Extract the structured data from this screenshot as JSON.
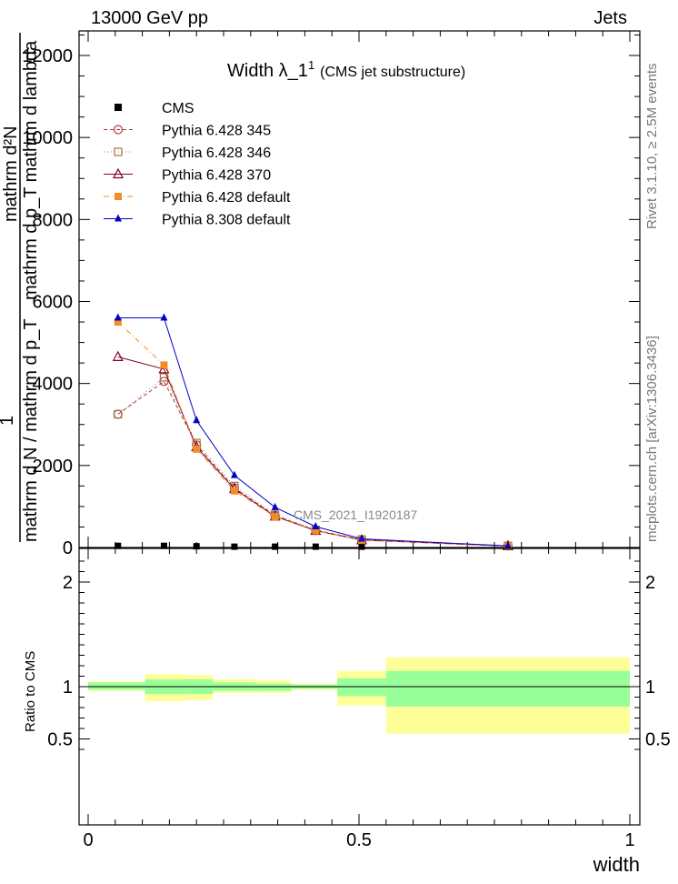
{
  "header": {
    "left": "13000 GeV pp",
    "right": "Jets"
  },
  "side": {
    "top": "Rivet 3.1.10, ≥ 2.5M events",
    "bottom": "mcplots.cern.ch [arXiv:1306.3436]"
  },
  "chart_data": {
    "type": "line",
    "title_main": "Width λ_1",
    "title_sup": "1",
    "title_sub": "(CMS jet substructure)",
    "watermark": "CMS_2021_I1920187",
    "xlabel": "width",
    "ylabel_top": "1",
    "ylabel_top_fraction": "mathrm d²N",
    "ylabel_top_denom": "mathrm d p_T mathrm d lambda",
    "ylabel_bottom": "mathrm d N / mathrm d p_T",
    "ratio_ylabel": "Ratio to CMS",
    "xlim": [
      0,
      1
    ],
    "ylim": [
      0,
      12500
    ],
    "ratio_ylim": [
      0.35,
      2.3
    ],
    "x_ticks": [
      "0",
      "0.5",
      "1"
    ],
    "y_ticks": [
      "0",
      "2000",
      "4000",
      "6000",
      "8000",
      "10000",
      "12000"
    ],
    "y_tick_values": [
      0,
      2000,
      4000,
      6000,
      8000,
      10000,
      12000
    ],
    "ratio_ticks": [
      "0.5",
      "1",
      "2"
    ],
    "ratio_tick_values": [
      0.5,
      1,
      2
    ],
    "bin_edges": [
      0.0,
      0.105,
      0.18,
      0.23,
      0.31,
      0.375,
      0.46,
      0.55,
      1.0
    ],
    "x": [
      0.055,
      0.14,
      0.2,
      0.27,
      0.345,
      0.42,
      0.505,
      0.775
    ],
    "legend_position": "top-left",
    "series": [
      {
        "name": "CMS",
        "color": "#000000",
        "marker": "square-filled",
        "dash": "none",
        "values": [
          40,
          40,
          30,
          20,
          20,
          20,
          20,
          10
        ]
      },
      {
        "name": "Pythia 6.428 345",
        "color": "#b03a48",
        "marker": "circle-open",
        "dash": "4,3",
        "values": [
          3250,
          4050,
          2500,
          1450,
          780,
          420,
          190,
          40
        ]
      },
      {
        "name": "Pythia 6.428 346",
        "color": "#a0784a",
        "marker": "square-open",
        "dash": "1,3",
        "values": [
          3250,
          4150,
          2550,
          1500,
          800,
          430,
          195,
          40
        ]
      },
      {
        "name": "Pythia 6.428 370",
        "color": "#800020",
        "marker": "triangle-open",
        "dash": "none",
        "values": [
          4650,
          4350,
          2450,
          1430,
          760,
          410,
          180,
          35
        ]
      },
      {
        "name": "Pythia 6.428 default",
        "color": "#f28c28",
        "marker": "square-filled",
        "dash": "6,3,1,3",
        "values": [
          5500,
          4450,
          2400,
          1380,
          750,
          410,
          180,
          35
        ]
      },
      {
        "name": "Pythia 8.308 default",
        "color": "#0000cc",
        "marker": "triangle-filled",
        "dash": "none",
        "values": [
          5600,
          5600,
          3100,
          1760,
          980,
          510,
          210,
          40
        ]
      }
    ],
    "ratio_band_inner": [
      {
        "x0": 0.0,
        "x1": 0.105,
        "lo": 0.97,
        "hi": 1.04
      },
      {
        "x0": 0.105,
        "x1": 0.18,
        "lo": 0.93,
        "hi": 1.07
      },
      {
        "x0": 0.18,
        "x1": 0.23,
        "lo": 0.93,
        "hi": 1.07
      },
      {
        "x0": 0.23,
        "x1": 0.31,
        "lo": 0.96,
        "hi": 1.04
      },
      {
        "x0": 0.31,
        "x1": 0.375,
        "lo": 0.96,
        "hi": 1.03
      },
      {
        "x0": 0.375,
        "x1": 0.46,
        "lo": 0.98,
        "hi": 1.02
      },
      {
        "x0": 0.46,
        "x1": 0.55,
        "lo": 0.91,
        "hi": 1.08
      },
      {
        "x0": 0.55,
        "x1": 1.0,
        "lo": 0.81,
        "hi": 1.15
      }
    ],
    "ratio_band_outer": [
      {
        "x0": 0.0,
        "x1": 0.105,
        "lo": 0.96,
        "hi": 1.05
      },
      {
        "x0": 0.105,
        "x1": 0.18,
        "lo": 0.86,
        "hi": 1.12
      },
      {
        "x0": 0.18,
        "x1": 0.23,
        "lo": 0.87,
        "hi": 1.11
      },
      {
        "x0": 0.23,
        "x1": 0.31,
        "lo": 0.94,
        "hi": 1.07
      },
      {
        "x0": 0.31,
        "x1": 0.375,
        "lo": 0.94,
        "hi": 1.06
      },
      {
        "x0": 0.375,
        "x1": 0.46,
        "lo": 0.97,
        "hi": 1.03
      },
      {
        "x0": 0.46,
        "x1": 0.55,
        "lo": 0.82,
        "hi": 1.15
      },
      {
        "x0": 0.55,
        "x1": 1.0,
        "lo": 0.55,
        "hi": 1.28
      }
    ],
    "ratio_band_colors": {
      "inner": "#99ff99",
      "outer": "#ffff99"
    }
  }
}
